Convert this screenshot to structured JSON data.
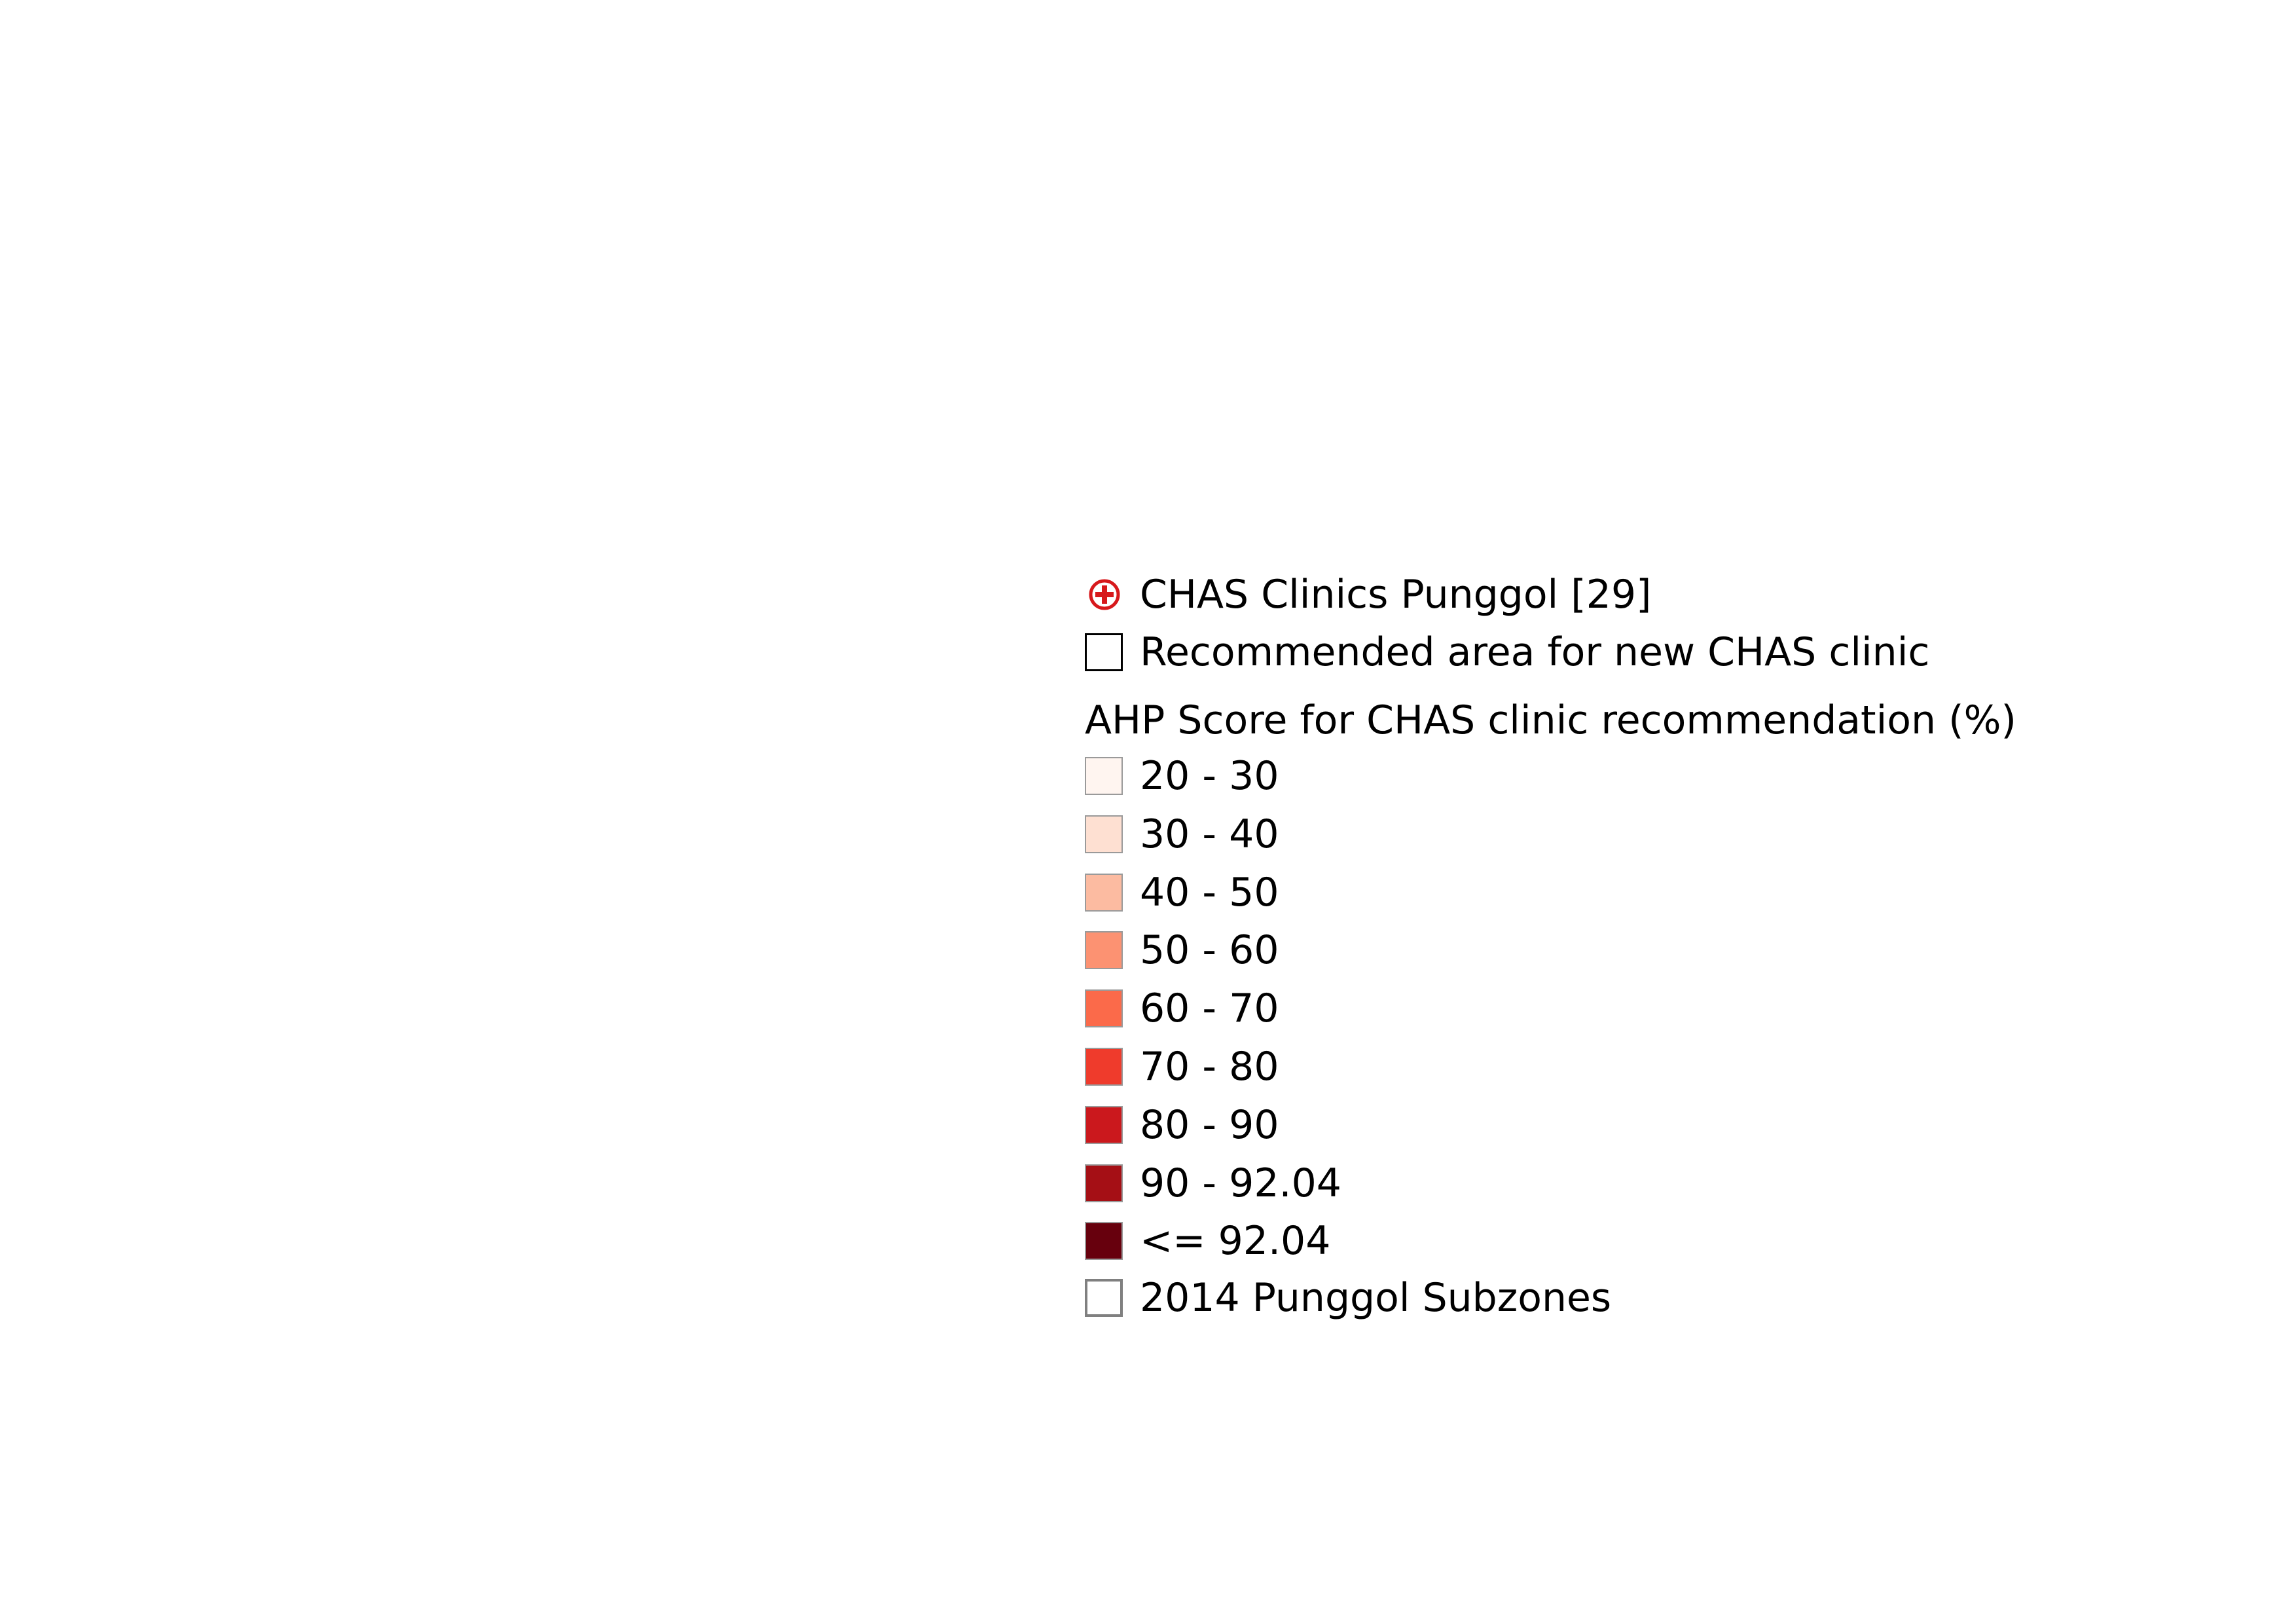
{
  "legend": {
    "clinics": {
      "label": "CHAS Clinics Punggol [29]",
      "icon": "red-cross-circle-icon",
      "color": "#d7191c"
    },
    "recommended": {
      "label": "Recommended area for new CHAS clinic",
      "border": "#000000"
    },
    "score_title": "AHP Score for CHAS clinic recommendation (%)",
    "classes": [
      {
        "label": "20 - 30",
        "color": "#fff5f0"
      },
      {
        "label": "30 - 40",
        "color": "#fee0d2"
      },
      {
        "label": "40 - 50",
        "color": "#fcbba1"
      },
      {
        "label": "50 - 60",
        "color": "#fc9272"
      },
      {
        "label": "60 - 70",
        "color": "#fb6a4a"
      },
      {
        "label": "70 - 80",
        "color": "#ef3b2c"
      },
      {
        "label": "80 - 90",
        "color": "#cb181d"
      },
      {
        "label": "90 - 92.04",
        "color": "#a50f15"
      },
      {
        "label": "<= 92.04",
        "color": "#67000d"
      }
    ],
    "subzones": {
      "label": "2014 Punggol Subzones",
      "border": "#808080"
    }
  }
}
